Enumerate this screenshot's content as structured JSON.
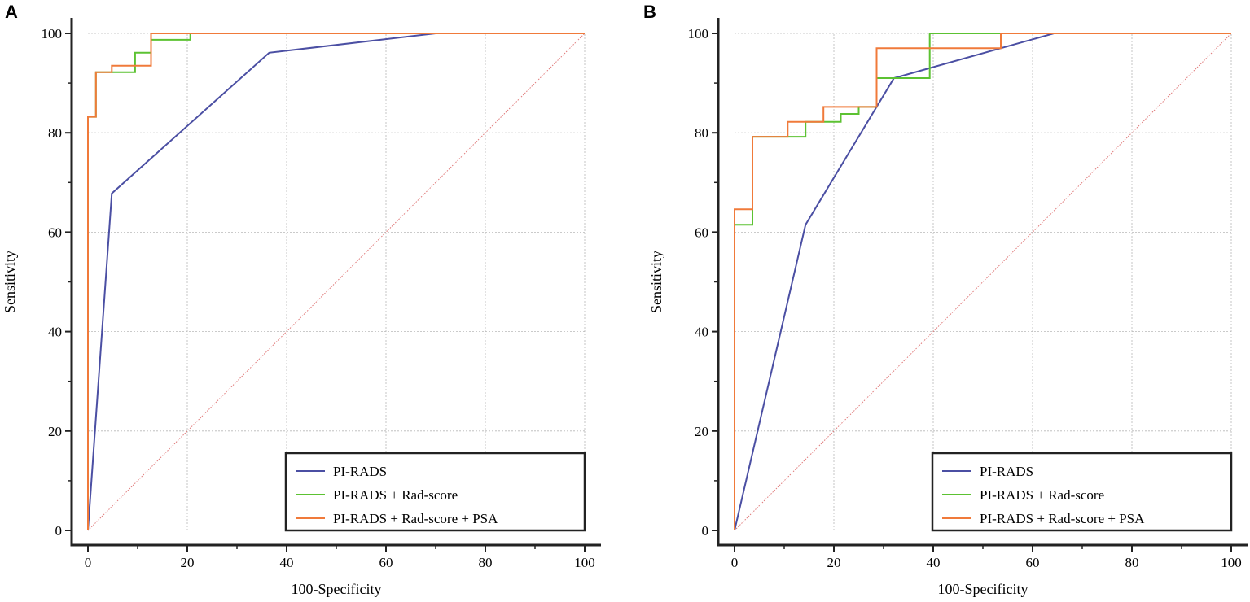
{
  "chart_data": [
    {
      "panel_label": "A",
      "type": "line",
      "xlabel": "100-Specificity",
      "ylabel": "Sensitivity",
      "xlim": [
        0,
        100
      ],
      "ylim": [
        0,
        100
      ],
      "xticks": [
        "0",
        "20",
        "40",
        "60",
        "80",
        "100"
      ],
      "yticks": [
        "0",
        "20",
        "40",
        "60",
        "80",
        "100"
      ],
      "grid": true,
      "legend_position": "bottom-right",
      "reference_line": {
        "name": "chance",
        "x": [
          0,
          100
        ],
        "y": [
          0,
          100
        ],
        "color": "#e07a7a"
      },
      "series": [
        {
          "name": "PI-RADS",
          "color": "#4b4fa3",
          "x": [
            0,
            4.8,
            36.5,
            70,
            100
          ],
          "y": [
            0,
            67.8,
            96.1,
            100,
            100
          ]
        },
        {
          "name": "PI-RADS + Rad-score",
          "color": "#5cc232",
          "x": [
            0,
            0,
            1.6,
            1.6,
            9.5,
            9.5,
            12.7,
            12.7,
            20.6,
            20.6,
            100
          ],
          "y": [
            0,
            83.2,
            83.2,
            92.2,
            92.2,
            96.1,
            96.1,
            98.7,
            98.7,
            100,
            100
          ]
        },
        {
          "name": "PI-RADS + Rad-score + PSA",
          "color": "#f07a3a",
          "x": [
            0,
            0,
            1.6,
            1.6,
            4.8,
            4.8,
            12.7,
            12.7,
            100
          ],
          "y": [
            0,
            83.2,
            83.2,
            92.2,
            92.2,
            93.5,
            93.5,
            100,
            100
          ]
        }
      ]
    },
    {
      "panel_label": "B",
      "type": "line",
      "xlabel": "100-Specificity",
      "ylabel": "Sensitivity",
      "xlim": [
        0,
        100
      ],
      "ylim": [
        0,
        100
      ],
      "xticks": [
        "0",
        "20",
        "40",
        "60",
        "80",
        "100"
      ],
      "yticks": [
        "0",
        "20",
        "40",
        "60",
        "80",
        "100"
      ],
      "grid": true,
      "legend_position": "bottom-right",
      "reference_line": {
        "name": "chance",
        "x": [
          0,
          100
        ],
        "y": [
          0,
          100
        ],
        "color": "#e07a7a"
      },
      "series": [
        {
          "name": "PI-RADS",
          "color": "#4b4fa3",
          "x": [
            0,
            14.3,
            32.1,
            64.3,
            100
          ],
          "y": [
            0,
            61.5,
            91.0,
            100,
            100
          ]
        },
        {
          "name": "PI-RADS + Rad-score",
          "color": "#5cc232",
          "x": [
            0,
            0,
            3.6,
            3.6,
            14.3,
            14.3,
            21.4,
            21.4,
            25,
            25,
            28.6,
            28.6,
            39.3,
            39.3,
            100
          ],
          "y": [
            0,
            61.5,
            61.5,
            79.2,
            79.2,
            82.2,
            82.2,
            83.8,
            83.8,
            85.2,
            85.2,
            91.0,
            91.0,
            100,
            100
          ]
        },
        {
          "name": "PI-RADS + Rad-score + PSA",
          "color": "#f07a3a",
          "x": [
            0,
            0,
            3.6,
            3.6,
            10.7,
            10.7,
            17.9,
            17.9,
            28.6,
            28.6,
            53.6,
            53.6,
            100
          ],
          "y": [
            0,
            64.6,
            64.6,
            79.2,
            79.2,
            82.2,
            82.2,
            85.2,
            85.2,
            97.0,
            97.0,
            100,
            100
          ]
        }
      ]
    }
  ]
}
